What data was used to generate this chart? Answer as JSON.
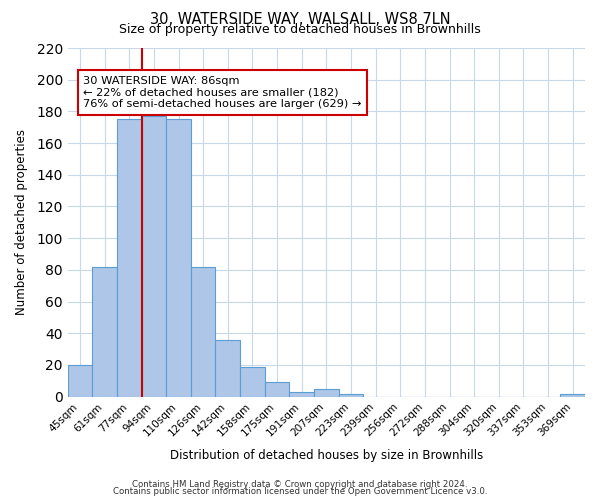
{
  "title": "30, WATERSIDE WAY, WALSALL, WS8 7LN",
  "subtitle": "Size of property relative to detached houses in Brownhills",
  "xlabel": "Distribution of detached houses by size in Brownhills",
  "ylabel": "Number of detached properties",
  "bar_labels": [
    "45sqm",
    "61sqm",
    "77sqm",
    "94sqm",
    "110sqm",
    "126sqm",
    "142sqm",
    "158sqm",
    "175sqm",
    "191sqm",
    "207sqm",
    "223sqm",
    "239sqm",
    "256sqm",
    "272sqm",
    "288sqm",
    "304sqm",
    "320sqm",
    "337sqm",
    "353sqm",
    "369sqm"
  ],
  "bar_values": [
    20,
    82,
    175,
    177,
    175,
    82,
    36,
    19,
    9,
    3,
    5,
    2,
    0,
    0,
    0,
    0,
    0,
    0,
    0,
    0,
    2
  ],
  "bar_color": "#aec6e8",
  "bar_edge_color": "#5a9fd4",
  "vline_x": 2,
  "vline_color": "#cc0000",
  "ylim": [
    0,
    220
  ],
  "yticks": [
    0,
    20,
    40,
    60,
    80,
    100,
    120,
    140,
    160,
    180,
    200,
    220
  ],
  "annotation_title": "30 WATERSIDE WAY: 86sqm",
  "annotation_line1": "← 22% of detached houses are smaller (182)",
  "annotation_line2": "76% of semi-detached houses are larger (629) →",
  "annotation_box_color": "#ffffff",
  "annotation_box_edge": "#cc0000",
  "footer_line1": "Contains HM Land Registry data © Crown copyright and database right 2024.",
  "footer_line2": "Contains public sector information licensed under the Open Government Licence v3.0.",
  "background_color": "#ffffff",
  "grid_color": "#c8d8e8"
}
